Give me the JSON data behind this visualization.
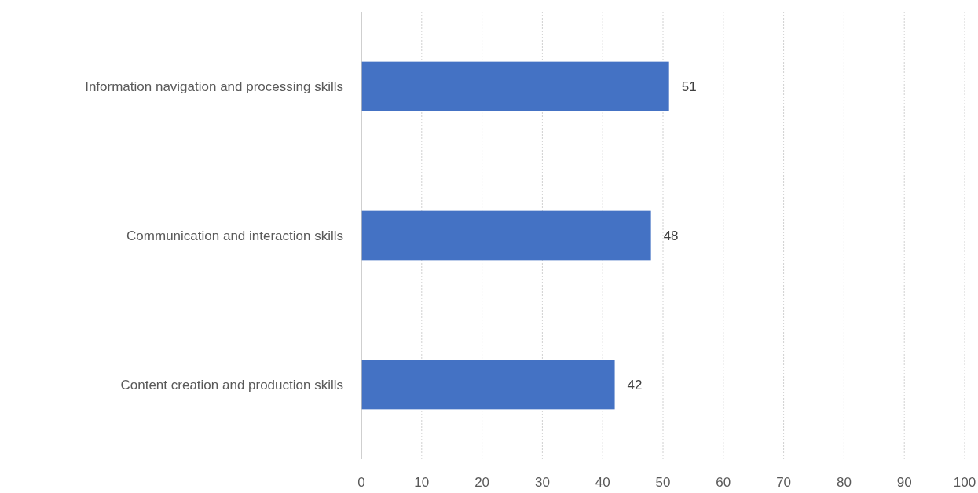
{
  "chart_data": {
    "type": "bar",
    "orientation": "horizontal",
    "categories": [
      "Information navigation and processing skills",
      "Communication and interaction skills",
      "Content creation and production skills"
    ],
    "values": [
      51,
      48,
      42
    ],
    "color": "#4472c4",
    "xlim": [
      0,
      100
    ],
    "xticks": [
      0,
      10,
      20,
      30,
      40,
      50,
      60,
      70,
      80,
      90,
      100
    ],
    "grid": "x",
    "data_labels": true
  }
}
